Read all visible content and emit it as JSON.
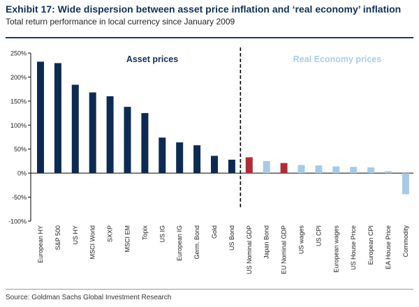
{
  "header": {
    "title": "Exhibit 17: Wide dispersion between asset price inflation and ‘real economy’ inflation",
    "subtitle": "Total return performance in local currency since January 2009"
  },
  "footer": {
    "source": "Source: Goldman Sachs Global Investment Research"
  },
  "colors": {
    "asset": "#0d2b52",
    "real_economy": "#a6cbe8",
    "nominal_gdp": "#b12b34",
    "asset_label": "#12305a",
    "real_label": "#a9cde9"
  },
  "chart_data": {
    "type": "bar",
    "title": "Exhibit 17: Wide dispersion between asset price inflation and ‘real economy’ inflation",
    "subtitle": "Total return performance in local currency since January 2009",
    "categories": [
      "European HY",
      "S&P 500",
      "US HY",
      "MSCI World",
      "SXXP",
      "MSCI EM",
      "Topix",
      "US IG",
      "European IG",
      "Germ. Bond",
      "Gold",
      "US Bond",
      "US Nominal GDP",
      "Japan Bond",
      "EU Nominal GDP",
      "US wages",
      "US CPI",
      "European wages",
      "US House Price",
      "European CPI",
      "EA House Price",
      "Commodity"
    ],
    "values": [
      232,
      229,
      184,
      168,
      160,
      138,
      125,
      74,
      64,
      58,
      36,
      28,
      33,
      25,
      21,
      17,
      16,
      14,
      13,
      12,
      4,
      -44
    ],
    "groups": [
      "asset",
      "asset",
      "asset",
      "asset",
      "asset",
      "asset",
      "asset",
      "asset",
      "asset",
      "asset",
      "asset",
      "asset",
      "nominal_gdp",
      "real_economy",
      "nominal_gdp",
      "real_economy",
      "real_economy",
      "real_economy",
      "real_economy",
      "real_economy",
      "real_economy",
      "real_economy"
    ],
    "ylim": [
      -100,
      250
    ],
    "yticks": [
      -100,
      -50,
      0,
      50,
      100,
      150,
      200,
      250
    ],
    "ytick_labels": [
      "-100%",
      "-50%",
      "0%",
      "50%",
      "100%",
      "150%",
      "200%",
      "250%"
    ],
    "annotations": [
      {
        "text": "Asset prices",
        "group": "asset"
      },
      {
        "text": "Real Economy prices",
        "group": "real_economy"
      }
    ],
    "divider_after_index": 11,
    "grid": false
  }
}
